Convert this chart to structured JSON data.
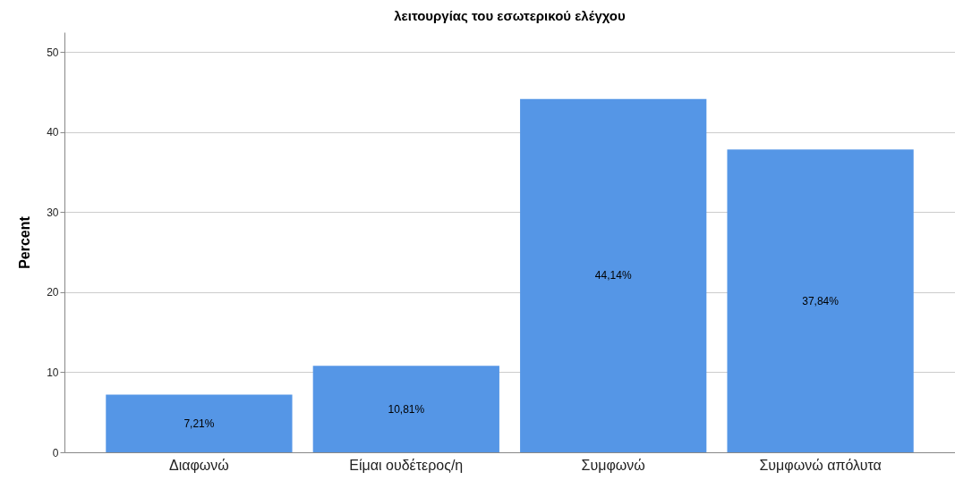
{
  "chart_data": {
    "type": "bar",
    "title": "λειτουργίας του εσωτερικού ελέγχου",
    "ylabel": "Percent",
    "categories": [
      "Διαφωνώ",
      "Είμαι ουδέτερος/η",
      "Συμφωνώ",
      "Συμφωνώ απόλυτα"
    ],
    "values": [
      7.21,
      10.81,
      44.14,
      37.84
    ],
    "value_labels": [
      "7,21%",
      "10,81%",
      "44,14%",
      "37,84%"
    ],
    "color": "#5596e6",
    "ylim": [
      0,
      52.5
    ],
    "yticks": [
      0,
      10,
      20,
      30,
      40,
      50
    ],
    "grid": "y"
  }
}
